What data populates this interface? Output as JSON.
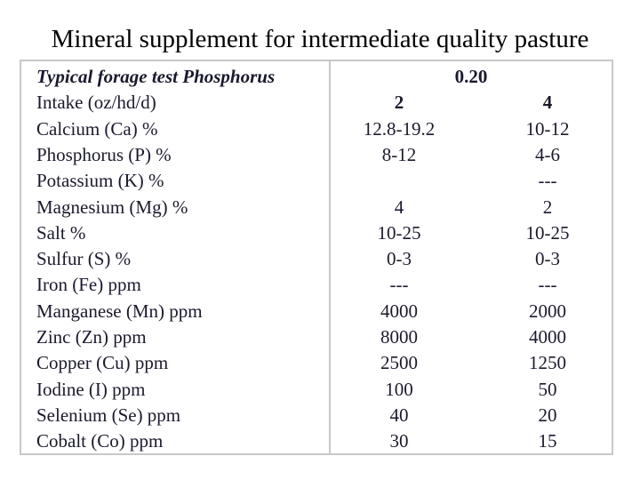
{
  "title": "Mineral supplement for intermediate quality pasture",
  "header": {
    "label": "Typical forage test Phosphorus",
    "value": "0.20"
  },
  "rows": [
    {
      "label": "Intake (oz/hd/d)",
      "a": "2",
      "b": "4"
    },
    {
      "label": "Calcium (Ca) %",
      "a": "12.8-19.2",
      "b": "10-12"
    },
    {
      "label": "Phosphorus (P) %",
      "a": "8-12",
      "b": "4-6"
    },
    {
      "label": "Potassium (K) %",
      "a": "",
      "b": "---"
    },
    {
      "label": "Magnesium (Mg) %",
      "a": "4",
      "b": "2"
    },
    {
      "label": "Salt %",
      "a": "10-25",
      "b": "10-25"
    },
    {
      "label": "Sulfur (S) %",
      "a": "0-3",
      "b": "0-3"
    },
    {
      "label": "Iron (Fe) ppm",
      "a": "---",
      "b": "---"
    },
    {
      "label": "Manganese (Mn) ppm",
      "a": "4000",
      "b": "2000"
    },
    {
      "label": "Zinc (Zn) ppm",
      "a": "8000",
      "b": "4000"
    },
    {
      "label": "Copper (Cu) ppm",
      "a": "2500",
      "b": "1250"
    },
    {
      "label": "Iodine (I) ppm",
      "a": "100",
      "b": "50"
    },
    {
      "label": "Selenium (Se) ppm",
      "a": "40",
      "b": "20"
    },
    {
      "label": "Cobalt (Co) ppm",
      "a": "30",
      "b": "15"
    }
  ]
}
